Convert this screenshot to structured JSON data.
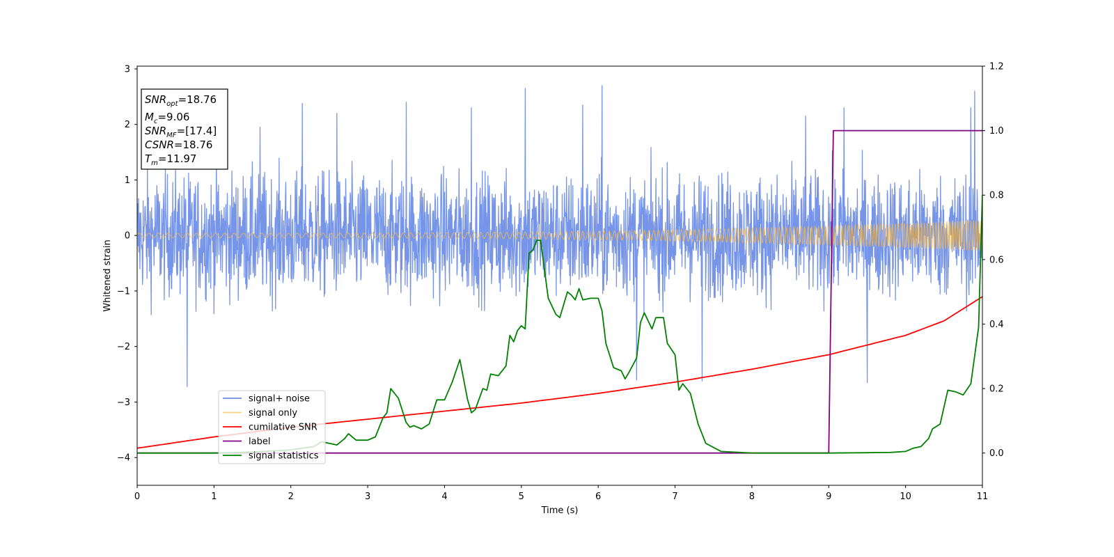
{
  "chart_data": {
    "type": "line",
    "xlabel": "Time (s)",
    "ylabel": "Whitened strain",
    "xlim": [
      0,
      11
    ],
    "ylim_left": [
      -4.5,
      3.05
    ],
    "ylim_right": [
      -0.1,
      1.2
    ],
    "x_ticks": [
      "0",
      "1",
      "2",
      "3",
      "4",
      "5",
      "6",
      "7",
      "8",
      "9",
      "10",
      "11"
    ],
    "y_left_ticks": [
      "3",
      "2",
      "1",
      "0",
      "−1",
      "−2",
      "−3",
      "−4"
    ],
    "y_right_ticks": [
      "1.2",
      "1.0",
      "0.8",
      "0.6",
      "0.4",
      "0.2",
      "0.0"
    ],
    "grid": false,
    "legend_position": "lower-left",
    "legend": [
      "signal+ noise",
      "signal only",
      "cumilative SNR",
      "label",
      "signal statistics"
    ],
    "annotation": {
      "line1_main": "SNR",
      "line1_sub": "opt",
      "line1_value": "=18.76",
      "line2_main": "M",
      "line2_sub": "c",
      "line2_value": "=9.06",
      "line3_main": "SNR",
      "line3_sub": "MF",
      "line3_value": "=[17.4]",
      "line4_main": "CSNR",
      "line4_value": "=18.76",
      "line5_main": "T",
      "line5_sub": "m",
      "line5_value": "=11.97"
    },
    "series": [
      {
        "name": "signal+ noise",
        "axis": "left",
        "color": "#6b8ce6",
        "style": "dense-noise",
        "x_range": [
          0,
          11
        ],
        "noise_band": [
          -1.4,
          1.4
        ],
        "peaks": [
          {
            "x": 0.65,
            "y": -2.72
          },
          {
            "x": 1.6,
            "y": 1.95
          },
          {
            "x": 2.15,
            "y": 2.38
          },
          {
            "x": 2.6,
            "y": 2.2
          },
          {
            "x": 3.5,
            "y": 2.4
          },
          {
            "x": 4.35,
            "y": 2.3
          },
          {
            "x": 5.05,
            "y": 2.65
          },
          {
            "x": 5.8,
            "y": 2.35
          },
          {
            "x": 6.05,
            "y": 2.7
          },
          {
            "x": 6.5,
            "y": -2.6
          },
          {
            "x": 7.35,
            "y": -2.62
          },
          {
            "x": 8.7,
            "y": 2.15
          },
          {
            "x": 9.2,
            "y": 2.3
          },
          {
            "x": 9.5,
            "y": -2.65
          },
          {
            "x": 10.85,
            "y": 2.3
          },
          {
            "x": 10.9,
            "y": 2.6
          }
        ]
      },
      {
        "name": "signal only",
        "axis": "left",
        "color": "#f5b94a",
        "style": "chirp",
        "x_range": [
          0,
          11
        ],
        "amplitude_start": 0.04,
        "amplitude_end": 0.28,
        "freq_start": 8.0,
        "freq_end": 30.0
      },
      {
        "name": "cumilative SNR",
        "axis": "right",
        "color": "#ff0000",
        "x": [
          0,
          1,
          2,
          3,
          4,
          5,
          6,
          7,
          8,
          9,
          10,
          10.5,
          11
        ],
        "y": [
          0.015,
          0.05,
          0.08,
          0.105,
          0.13,
          0.155,
          0.185,
          0.22,
          0.26,
          0.305,
          0.365,
          0.41,
          0.485
        ]
      },
      {
        "name": "label",
        "axis": "right",
        "color": "#800080",
        "x": [
          0,
          9.0,
          9.06,
          11
        ],
        "y": [
          0.0,
          0.0,
          1.0,
          1.0
        ]
      },
      {
        "name": "signal statistics",
        "axis": "right",
        "color": "#008000",
        "x": [
          0,
          0.5,
          1.0,
          1.5,
          2.0,
          2.3,
          2.4,
          2.5,
          2.6,
          2.7,
          2.75,
          2.85,
          3.0,
          3.1,
          3.2,
          3.25,
          3.3,
          3.4,
          3.5,
          3.55,
          3.6,
          3.7,
          3.8,
          3.9,
          4.0,
          4.1,
          4.2,
          4.3,
          4.35,
          4.4,
          4.5,
          4.55,
          4.6,
          4.7,
          4.8,
          4.85,
          4.9,
          4.95,
          5.0,
          5.05,
          5.1,
          5.15,
          5.2,
          5.25,
          5.35,
          5.45,
          5.5,
          5.6,
          5.65,
          5.7,
          5.75,
          5.8,
          5.9,
          6.0,
          6.05,
          6.1,
          6.2,
          6.3,
          6.35,
          6.4,
          6.5,
          6.55,
          6.6,
          6.7,
          6.75,
          6.85,
          6.9,
          7.0,
          7.05,
          7.1,
          7.2,
          7.3,
          7.4,
          7.6,
          8.0,
          8.5,
          9.0,
          9.5,
          9.8,
          10.0,
          10.1,
          10.2,
          10.3,
          10.35,
          10.45,
          10.55,
          10.65,
          10.75,
          10.85,
          10.95,
          11.0
        ],
        "y": [
          0.0,
          0.0,
          0.0,
          0.003,
          0.01,
          0.02,
          0.035,
          0.03,
          0.025,
          0.045,
          0.06,
          0.04,
          0.04,
          0.05,
          0.11,
          0.125,
          0.2,
          0.17,
          0.095,
          0.08,
          0.085,
          0.075,
          0.09,
          0.165,
          0.165,
          0.22,
          0.29,
          0.165,
          0.125,
          0.135,
          0.2,
          0.195,
          0.245,
          0.24,
          0.27,
          0.365,
          0.345,
          0.38,
          0.395,
          0.385,
          0.62,
          0.63,
          0.66,
          0.66,
          0.48,
          0.43,
          0.42,
          0.5,
          0.49,
          0.475,
          0.51,
          0.475,
          0.48,
          0.48,
          0.44,
          0.34,
          0.265,
          0.255,
          0.23,
          0.25,
          0.295,
          0.405,
          0.435,
          0.385,
          0.42,
          0.42,
          0.34,
          0.305,
          0.195,
          0.215,
          0.185,
          0.09,
          0.03,
          0.005,
          0.0,
          0.0,
          0.0,
          0.001,
          0.002,
          0.005,
          0.015,
          0.02,
          0.045,
          0.075,
          0.09,
          0.195,
          0.19,
          0.18,
          0.215,
          0.39,
          0.8
        ]
      }
    ]
  }
}
